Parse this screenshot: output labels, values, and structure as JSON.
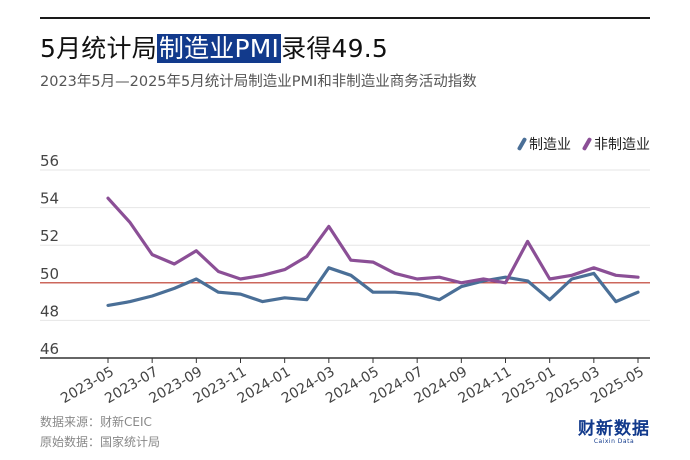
{
  "header": {
    "title_pre": "5月统计局",
    "title_hl": "制造业PMI",
    "title_post": "录得49.5",
    "subtitle": "2023年5月—2025年5月统计局制造业PMI和非制造业商务活动指数"
  },
  "footer": {
    "source": "数据来源：财新CEIC",
    "origin": "原始数据：国家统计局"
  },
  "logo": {
    "cn": "财新数据",
    "en": "Caixin Data"
  },
  "colors": {
    "manufacturing": "#4a6f97",
    "non_manufacturing": "#8b4f96",
    "reference_line": "#c0392b",
    "grid": "#e6e6e6",
    "brand": "#123a8c"
  },
  "chart_data": {
    "type": "line",
    "x": [
      "2023-05",
      "2023-06",
      "2023-07",
      "2023-08",
      "2023-09",
      "2023-10",
      "2023-11",
      "2023-12",
      "2024-01",
      "2024-02",
      "2024-03",
      "2024-04",
      "2024-05",
      "2024-06",
      "2024-07",
      "2024-08",
      "2024-09",
      "2024-10",
      "2024-11",
      "2024-12",
      "2025-01",
      "2025-02",
      "2025-03",
      "2025-04",
      "2025-05"
    ],
    "x_tick_labels": [
      "2023-05",
      "2023-07",
      "2023-09",
      "2023-11",
      "2024-01",
      "2024-03",
      "2024-05",
      "2024-07",
      "2024-09",
      "2024-11",
      "2025-01",
      "2025-03",
      "2025-05"
    ],
    "series": [
      {
        "name": "制造业",
        "color": "#4a6f97",
        "values": [
          48.8,
          49.0,
          49.3,
          49.7,
          50.2,
          49.5,
          49.4,
          49.0,
          49.2,
          49.1,
          50.8,
          50.4,
          49.5,
          49.5,
          49.4,
          49.1,
          49.8,
          50.1,
          50.3,
          50.1,
          49.1,
          50.2,
          50.5,
          49.0,
          49.5
        ]
      },
      {
        "name": "非制造业",
        "color": "#8b4f96",
        "values": [
          54.5,
          53.2,
          51.5,
          51.0,
          51.7,
          50.6,
          50.2,
          50.4,
          50.7,
          51.4,
          53.0,
          51.2,
          51.1,
          50.5,
          50.2,
          50.3,
          50.0,
          50.2,
          50.0,
          52.2,
          50.2,
          50.4,
          50.8,
          50.4,
          50.3
        ]
      }
    ],
    "reference_line": 50,
    "y_ticks": [
      46,
      48,
      50,
      52,
      54,
      56
    ],
    "ylim": [
      46,
      56
    ],
    "xlabel": "",
    "ylabel": "",
    "grid": true,
    "legend": "top-right"
  }
}
